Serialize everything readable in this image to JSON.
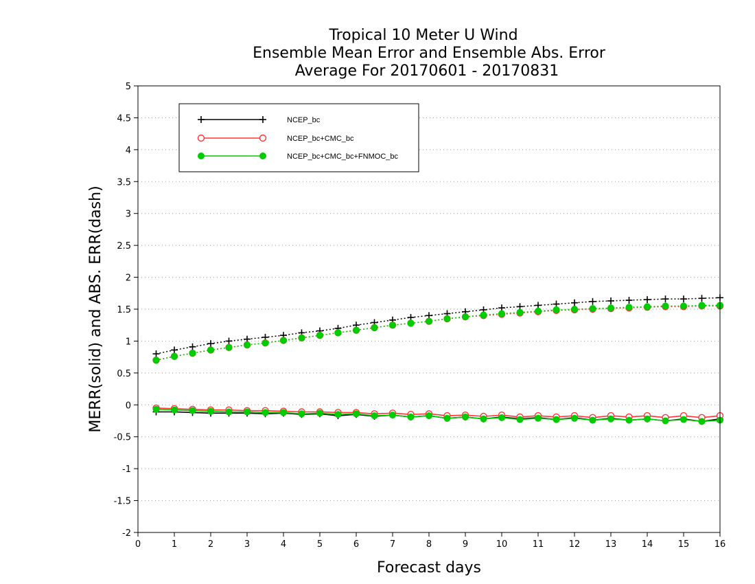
{
  "chart_data": {
    "type": "line",
    "title": [
      "Tropical 10 Meter U Wind",
      "Ensemble Mean Error and Ensemble Abs. Error",
      "Average For 20170601 - 20170831"
    ],
    "xlabel": "Forecast days",
    "ylabel": "MERR(solid) and ABS. ERR(dash)",
    "xlim": [
      0,
      16
    ],
    "ylim": [
      -2,
      5
    ],
    "xticks": [
      0,
      1,
      2,
      3,
      4,
      5,
      6,
      7,
      8,
      9,
      10,
      11,
      12,
      13,
      14,
      15,
      16
    ],
    "yticks": [
      -2,
      -1.5,
      -1,
      -0.5,
      0,
      0.5,
      1,
      1.5,
      2,
      2.5,
      3,
      3.5,
      4,
      4.5,
      5
    ],
    "ytick_labels": [
      "-2",
      "-1.5",
      "-1",
      "-0.5",
      "0",
      "0.5",
      "1",
      "1.5",
      "2",
      "2.5",
      "3",
      "3.5",
      "4",
      "4.5",
      "5"
    ],
    "grid": "horizontal dotted",
    "legend_position": "top-left",
    "x": [
      0.5,
      1,
      1.5,
      2,
      2.5,
      3,
      3.5,
      4,
      4.5,
      5,
      5.5,
      6,
      6.5,
      7,
      7.5,
      8,
      8.5,
      9,
      9.5,
      10,
      10.5,
      11,
      11.5,
      12,
      12.5,
      13,
      13.5,
      14,
      14.5,
      15,
      15.5,
      16
    ],
    "series": [
      {
        "name": "NCEP_bc",
        "color": "#000000",
        "marker": "plus",
        "merr": [
          -0.11,
          -0.11,
          -0.12,
          -0.13,
          -0.13,
          -0.13,
          -0.14,
          -0.13,
          -0.15,
          -0.14,
          -0.17,
          -0.15,
          -0.18,
          -0.16,
          -0.19,
          -0.17,
          -0.21,
          -0.19,
          -0.22,
          -0.19,
          -0.22,
          -0.2,
          -0.23,
          -0.2,
          -0.24,
          -0.21,
          -0.24,
          -0.22,
          -0.25,
          -0.22,
          -0.26,
          -0.22
        ],
        "abs_err": [
          0.8,
          0.86,
          0.91,
          0.96,
          1.0,
          1.03,
          1.06,
          1.09,
          1.13,
          1.16,
          1.2,
          1.25,
          1.29,
          1.33,
          1.37,
          1.4,
          1.43,
          1.46,
          1.49,
          1.52,
          1.54,
          1.56,
          1.58,
          1.6,
          1.62,
          1.63,
          1.64,
          1.65,
          1.66,
          1.66,
          1.67,
          1.68
        ]
      },
      {
        "name": "NCEP_bc+CMC_bc",
        "color": "#ff3333",
        "marker": "open-circle",
        "merr": [
          -0.05,
          -0.06,
          -0.07,
          -0.08,
          -0.08,
          -0.09,
          -0.09,
          -0.1,
          -0.11,
          -0.11,
          -0.12,
          -0.12,
          -0.14,
          -0.13,
          -0.15,
          -0.14,
          -0.17,
          -0.16,
          -0.18,
          -0.16,
          -0.19,
          -0.17,
          -0.19,
          -0.17,
          -0.2,
          -0.17,
          -0.19,
          -0.17,
          -0.2,
          -0.17,
          -0.2,
          -0.17
        ],
        "abs_err": [
          0.7,
          0.76,
          0.81,
          0.86,
          0.9,
          0.94,
          0.97,
          1.01,
          1.05,
          1.09,
          1.13,
          1.17,
          1.21,
          1.25,
          1.28,
          1.31,
          1.35,
          1.38,
          1.4,
          1.42,
          1.44,
          1.46,
          1.48,
          1.49,
          1.5,
          1.51,
          1.52,
          1.53,
          1.54,
          1.54,
          1.55,
          1.55
        ]
      },
      {
        "name": "NCEP_bc+CMC_bc+FNMOC_bc",
        "color": "#00cc00",
        "marker": "filled-circle",
        "merr": [
          -0.07,
          -0.08,
          -0.09,
          -0.1,
          -0.11,
          -0.11,
          -0.12,
          -0.12,
          -0.14,
          -0.13,
          -0.15,
          -0.14,
          -0.17,
          -0.16,
          -0.19,
          -0.17,
          -0.21,
          -0.19,
          -0.22,
          -0.2,
          -0.23,
          -0.21,
          -0.23,
          -0.21,
          -0.24,
          -0.22,
          -0.24,
          -0.22,
          -0.25,
          -0.23,
          -0.26,
          -0.24
        ],
        "abs_err": [
          0.7,
          0.76,
          0.81,
          0.86,
          0.9,
          0.94,
          0.97,
          1.01,
          1.05,
          1.09,
          1.13,
          1.17,
          1.21,
          1.25,
          1.28,
          1.31,
          1.35,
          1.38,
          1.41,
          1.43,
          1.45,
          1.47,
          1.49,
          1.5,
          1.51,
          1.52,
          1.53,
          1.54,
          1.55,
          1.55,
          1.56,
          1.56
        ]
      }
    ]
  }
}
